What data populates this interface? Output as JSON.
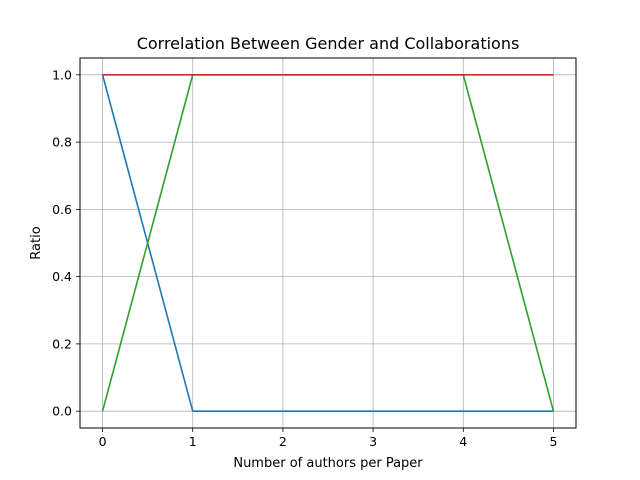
{
  "chart_data": {
    "type": "line",
    "title": "Correlation Between Gender and Collaborations",
    "xlabel": "Number of authors per Paper",
    "ylabel": "Ratio",
    "x": [
      0,
      1,
      2,
      3,
      4,
      5
    ],
    "xlim": [
      -0.25,
      5.25
    ],
    "ylim": [
      -0.05,
      1.05
    ],
    "xticks": [
      "0",
      "1",
      "2",
      "3",
      "4",
      "5"
    ],
    "yticks": [
      "0.0",
      "0.2",
      "0.4",
      "0.6",
      "0.8",
      "1.0"
    ],
    "grid": true,
    "legend": "none",
    "series": [
      {
        "color": "#1f77b4",
        "values": [
          1.0,
          0.0,
          0.0,
          0.0,
          0.0,
          0.0
        ]
      },
      {
        "color": "#2ca02c",
        "values": [
          0.0,
          1.0,
          1.0,
          1.0,
          1.0,
          0.0
        ]
      },
      {
        "color": "#d62728",
        "values": [
          1.0,
          1.0,
          1.0,
          1.0,
          1.0,
          1.0
        ]
      }
    ]
  }
}
